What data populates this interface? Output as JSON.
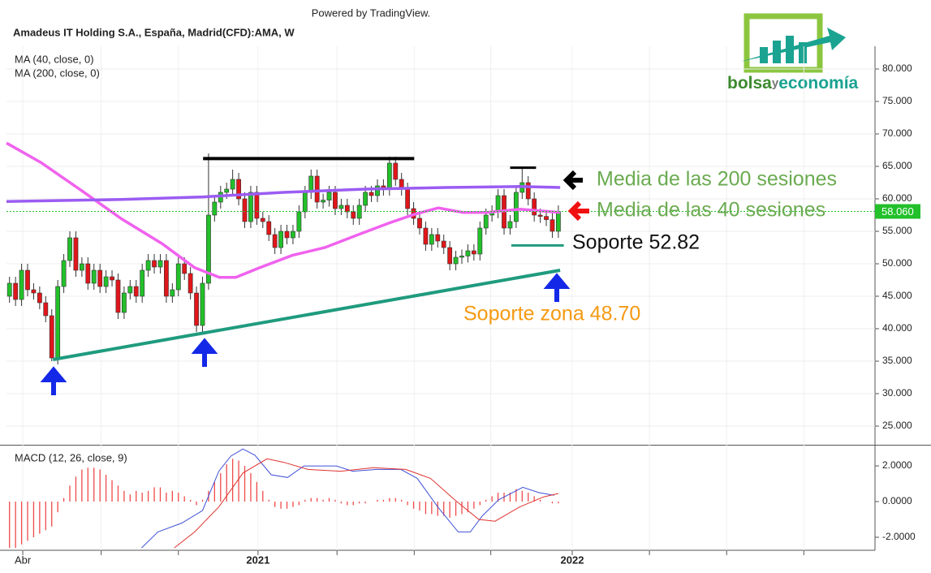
{
  "header": {
    "powered": "Powered by TradingView."
  },
  "logo": {
    "part1": "bolsa",
    "part2": "y",
    "part3": "economía"
  },
  "chart_data": [
    {
      "type": "candlestick",
      "title": "Amadeus IT Holding S.A., España, Madrid(CFD):AMA, W",
      "up_color": "#22c02a",
      "down_color": "#e0161a",
      "xlim": [
        -0.5,
        143.5
      ],
      "ylim": [
        22.125,
        83.5
      ],
      "yticks": [
        {
          "value": 80,
          "label": "80.000"
        },
        {
          "value": 75,
          "label": "75.000"
        },
        {
          "value": 70,
          "label": "70.000"
        },
        {
          "value": 65,
          "label": "65.000"
        },
        {
          "value": 60,
          "label": "60.000"
        },
        {
          "value": 55,
          "label": "55.000"
        },
        {
          "value": 50,
          "label": "50.000"
        },
        {
          "value": 45,
          "label": "45.000"
        },
        {
          "value": 40,
          "label": "40.000"
        },
        {
          "value": 35,
          "label": "35.000"
        },
        {
          "value": 30,
          "label": "30.000"
        },
        {
          "value": 25,
          "label": "25.000"
        }
      ],
      "grid": true,
      "last_price": {
        "value": 58.06,
        "label": "58.060",
        "color": "#22c02a"
      },
      "x": [
        0,
        1,
        2,
        3,
        4,
        5,
        6,
        7,
        8,
        9,
        10,
        11,
        12,
        13,
        14,
        15,
        16,
        17,
        18,
        19,
        20,
        21,
        22,
        23,
        24,
        25,
        26,
        27,
        28,
        29,
        30,
        31,
        32,
        33,
        34,
        35,
        36,
        37,
        38,
        39,
        40,
        41,
        42,
        43,
        44,
        45,
        46,
        47,
        48,
        49,
        50,
        51,
        52,
        53,
        54,
        55,
        56,
        57,
        58,
        59,
        60,
        61,
        62,
        63,
        64,
        65,
        66,
        67,
        68,
        69,
        70,
        71,
        72,
        73,
        74,
        75,
        76,
        77,
        78,
        79,
        80,
        81,
        82,
        83,
        84,
        85,
        86,
        87,
        88,
        89,
        90,
        91
      ],
      "open": [
        45,
        47,
        44.5,
        49,
        46,
        45.5,
        44,
        42,
        35.5,
        46.5,
        50.5,
        54,
        49,
        50,
        47,
        49,
        46.5,
        48,
        47.5,
        42.5,
        45.5,
        46.5,
        45,
        49,
        50.5,
        49.5,
        50.5,
        45,
        46,
        50,
        48.5,
        45.5,
        40.5,
        47,
        57.5,
        59.5,
        61,
        61.5,
        63,
        60,
        56.5,
        61,
        57,
        56.5,
        54.5,
        52.5,
        55,
        54,
        55,
        58,
        61,
        63.5,
        59.5,
        59.8,
        61,
        58.5,
        59,
        58,
        57,
        59,
        61,
        60.5,
        62,
        61.5,
        65.5,
        63,
        61.5,
        58.5,
        57,
        55.5,
        53,
        54.5,
        53.5,
        52.5,
        50,
        51,
        51.2,
        52,
        51.5,
        55.5,
        57.5,
        58,
        60.5,
        55.5,
        56.5,
        61,
        62.5,
        60,
        57.5,
        57.3,
        56.8,
        55
      ],
      "high": [
        48,
        48,
        50,
        50,
        47,
        46.5,
        45,
        43,
        47.5,
        51.5,
        55,
        55,
        51,
        51,
        50,
        50,
        49,
        49,
        48.5,
        46.5,
        47.5,
        47.5,
        50,
        51.5,
        51.5,
        51.5,
        51.5,
        47,
        51,
        51,
        49.5,
        46.5,
        48,
        67,
        60.5,
        62,
        62.5,
        64.5,
        64,
        61,
        62,
        62,
        58,
        57.5,
        55.5,
        56,
        56,
        56,
        59,
        62,
        64.5,
        64.5,
        60.8,
        62,
        62,
        60,
        60,
        59,
        60,
        62,
        62,
        63,
        63,
        66.5,
        66.5,
        64,
        62.5,
        59.5,
        58,
        56.5,
        55.5,
        55.5,
        54.5,
        53.5,
        52,
        52.2,
        53,
        53,
        56.5,
        58.5,
        59,
        61.5,
        61.5,
        57.5,
        62,
        65,
        63.5,
        61,
        58.5,
        58.3,
        57.8,
        59
      ],
      "low": [
        44,
        43.5,
        43.5,
        45,
        44.5,
        43,
        41,
        35,
        34.5,
        45.5,
        49.5,
        48,
        48,
        46,
        46,
        45.5,
        45.5,
        46.5,
        41.5,
        41.5,
        44.5,
        44,
        44,
        48,
        48.5,
        48.5,
        44,
        44,
        45,
        47.5,
        44.5,
        39.5,
        39.5,
        46,
        56.5,
        58.5,
        60,
        60.5,
        59,
        55.5,
        55.5,
        56,
        55.5,
        53.5,
        51.5,
        51.5,
        53,
        53,
        54,
        57,
        60,
        58.5,
        58.5,
        58.8,
        57.5,
        57.5,
        57,
        56,
        56,
        58,
        59.5,
        59.5,
        60.5,
        60.5,
        62,
        60.5,
        57.5,
        56,
        54.5,
        52,
        52,
        52.5,
        51.5,
        49,
        49,
        50,
        50.2,
        50.5,
        50.5,
        54.5,
        56.5,
        57,
        54.5,
        54.5,
        55.5,
        60,
        59,
        56.5,
        56.3,
        55.8,
        54,
        54
      ],
      "close": [
        47,
        44.5,
        49,
        46,
        45.5,
        44,
        42,
        35.5,
        46.5,
        50.5,
        54,
        49,
        50,
        47,
        49,
        46.5,
        48,
        47.5,
        42.5,
        45.5,
        46.5,
        45,
        49,
        50.5,
        49.5,
        50.5,
        45,
        46,
        50,
        48.5,
        45.5,
        40.5,
        47,
        57.5,
        59.5,
        61,
        61.5,
        63,
        60,
        56.5,
        61,
        57,
        56.5,
        54.5,
        52.5,
        55,
        54,
        55,
        58,
        61,
        63.5,
        59.5,
        59.8,
        61,
        58.5,
        59,
        58,
        57,
        59,
        61,
        60.5,
        62,
        61.5,
        65.5,
        63,
        61.5,
        58.5,
        57,
        55.5,
        53,
        54.5,
        53.5,
        52.5,
        50,
        51,
        51.2,
        52,
        51.5,
        55.5,
        57.5,
        58,
        60.5,
        55.5,
        56.5,
        61,
        62.5,
        60,
        57.5,
        57.3,
        56.8,
        55,
        58.06
      ],
      "series": [
        {
          "name": "MA (40, close, 0)",
          "color": "#f062ee",
          "x": [
            -0.5,
            5.2,
            11.9,
            18.6,
            25.3,
            30.7,
            34.8,
            37.5,
            41.5,
            46.9,
            52.3,
            57.6,
            63.0,
            67.1,
            71.1,
            75.2,
            79.2,
            84.6,
            91.3
          ],
          "values": [
            68.6,
            65.6,
            61.3,
            56.9,
            53.1,
            49.4,
            47.9,
            47.9,
            49.4,
            51.3,
            52.5,
            54.4,
            56.3,
            57.6,
            58.6,
            57.9,
            57.9,
            58.4,
            57.9
          ]
        },
        {
          "name": "MA (200, close, 0)",
          "color": "#9b5cf2",
          "x": [
            -0.5,
            18.6,
            32.1,
            45.5,
            59.0,
            72.5,
            84.6,
            91.3
          ],
          "values": [
            59.6,
            59.9,
            60.3,
            61.0,
            61.5,
            61.75,
            61.9,
            61.75
          ]
        }
      ],
      "trendlines": [
        {
          "color": "#000000",
          "x": [
            32.1,
            67.1
          ],
          "y": [
            66.2,
            66.2
          ]
        },
        {
          "color": "#1f9b7e",
          "x": [
            7.2,
            91.3
          ],
          "y": [
            35.25,
            49.0
          ]
        },
        {
          "color": "#1f9b7e",
          "x": [
            83.2,
            91.9
          ],
          "y": [
            52.82,
            52.82
          ]
        },
        {
          "color": "#000000",
          "x": [
            83.0,
            87.3
          ],
          "y": [
            64.8,
            64.8
          ]
        }
      ],
      "annotations": [
        {
          "text": "Media de las 200 sesiones",
          "color": "#6aab50"
        },
        {
          "text": "Media de las 40 sesiones",
          "color": "#6aab50"
        },
        {
          "text": "Soporte 52.82",
          "color": "#111111"
        },
        {
          "text": "Soporte zona 48.70",
          "color": "#f59a12"
        }
      ]
    },
    {
      "type": "combo",
      "title": "MACD (12, 26, close, 9)",
      "xlim": [
        -0.5,
        143.5
      ],
      "ylim": [
        -2.73,
        3.14
      ],
      "yticks": [
        {
          "value": 2,
          "label": "2.0000"
        },
        {
          "value": 0,
          "label": "0.0000"
        },
        {
          "value": -2,
          "label": "-2.0000"
        }
      ],
      "xticks": [
        {
          "value": 2.2,
          "label": "Abr"
        },
        {
          "value": 15.2,
          "label": null
        },
        {
          "value": 28.0,
          "label": null
        },
        {
          "value": 41.2,
          "label": "2021"
        },
        {
          "value": 54.3,
          "label": null
        },
        {
          "value": 67.1,
          "label": null
        },
        {
          "value": 79.8,
          "label": null
        },
        {
          "value": 93.3,
          "label": "2022"
        },
        {
          "value": 106.1,
          "label": null
        },
        {
          "value": 118.9,
          "label": null
        },
        {
          "value": 131.7,
          "label": null
        }
      ],
      "x": [
        0,
        1,
        2,
        3,
        4,
        5,
        6,
        7,
        8,
        9,
        10,
        11,
        12,
        13,
        14,
        15,
        16,
        17,
        18,
        19,
        20,
        21,
        22,
        23,
        24,
        25,
        26,
        27,
        28,
        29,
        30,
        31,
        32,
        33,
        34,
        35,
        36,
        37,
        38,
        39,
        40,
        41,
        42,
        43,
        44,
        45,
        46,
        47,
        48,
        49,
        50,
        51,
        52,
        53,
        54,
        55,
        56,
        57,
        58,
        59,
        60,
        61,
        62,
        63,
        64,
        65,
        66,
        67,
        68,
        69,
        70,
        71,
        72,
        73,
        74,
        75,
        76,
        77,
        78,
        79,
        80,
        81,
        82,
        83,
        84,
        85,
        86,
        87,
        88,
        89,
        90,
        91
      ],
      "histogram": {
        "color": "#ef4a4a",
        "values": [
          -2.6,
          -2.6,
          -2.4,
          -2.2,
          -2.0,
          -1.8,
          -1.6,
          -1.4,
          -0.6,
          0.2,
          0.9,
          1.4,
          1.8,
          1.9,
          1.9,
          1.8,
          1.5,
          1.2,
          0.9,
          0.6,
          0.4,
          0.6,
          0.5,
          0.6,
          0.8,
          0.8,
          0.5,
          0.6,
          0.5,
          0.3,
          0.1,
          -0.2,
          0.1,
          0.6,
          1.1,
          1.6,
          2.1,
          2.4,
          2.3,
          2.0,
          1.6,
          1.1,
          0.6,
          0.1,
          -0.3,
          -0.4,
          -0.4,
          -0.3,
          -0.2,
          0.1,
          0.2,
          0.2,
          0.1,
          0.2,
          0.1,
          -0.1,
          -0.2,
          -0.2,
          -0.1,
          -0.1,
          0.0,
          0.1,
          0.1,
          0.2,
          0.2,
          0.1,
          -0.2,
          -0.4,
          -0.5,
          -0.7,
          -0.7,
          -0.8,
          -0.8,
          -0.9,
          -0.8,
          -0.7,
          -0.6,
          -0.4,
          -0.2,
          0.1,
          0.3,
          0.5,
          0.5,
          0.5,
          0.7,
          0.6,
          0.5,
          0.3,
          0.1,
          0.0,
          -0.1,
          -0.1
        ]
      },
      "series": [
        {
          "color": "#3f51d8",
          "x": [
            21.9,
            24.6,
            28.6,
            32.0,
            34.7,
            36.7,
            38.7,
            40.7,
            43.4,
            46.1,
            48.8,
            54.2,
            56.9,
            60.9,
            64.9,
            67.6,
            71.0,
            74.4,
            76.4,
            78.4,
            81.1,
            85.1,
            87.8,
            90.3
          ],
          "values": [
            -2.6,
            -1.7,
            -1.2,
            -0.5,
            1.7,
            2.55,
            2.95,
            2.6,
            1.5,
            1.35,
            2.0,
            2.0,
            1.7,
            1.8,
            1.8,
            1.3,
            -0.3,
            -1.7,
            -1.7,
            -0.8,
            0.1,
            0.8,
            0.5,
            0.35
          ]
        },
        {
          "color": "#e0322e",
          "x": [
            27.3,
            30.7,
            34.7,
            38.7,
            42.7,
            45.5,
            49.5,
            54.9,
            60.3,
            65.7,
            69.8,
            73.8,
            77.8,
            80.5,
            84.6,
            88.6,
            91.0
          ],
          "values": [
            -2.6,
            -1.7,
            -0.3,
            1.6,
            2.4,
            2.2,
            1.8,
            1.7,
            1.9,
            1.8,
            1.3,
            0.1,
            -1.0,
            -1.1,
            -0.3,
            0.27,
            0.45
          ]
        }
      ]
    }
  ]
}
